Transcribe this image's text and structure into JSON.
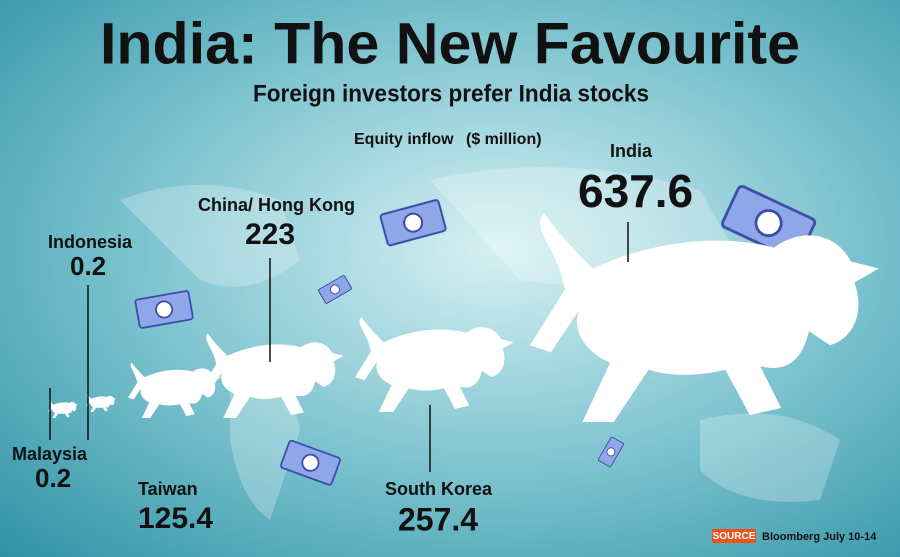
{
  "chart_data": {
    "type": "pictograph",
    "title": "India: The New Favourite",
    "subtitle": "Foreign investors prefer India stocks",
    "value_label": "Equity inflow",
    "unit_label": "($ million)",
    "categories": [
      "Malaysia",
      "Indonesia",
      "Taiwan",
      "China/ Hong Kong",
      "South Korea",
      "India"
    ],
    "values": [
      0.2,
      0.2,
      125.4,
      223,
      257.4,
      637.6
    ],
    "color": "#ffffff",
    "source_tag": "SOURCE",
    "source": "Bloomberg July 10-14"
  }
}
